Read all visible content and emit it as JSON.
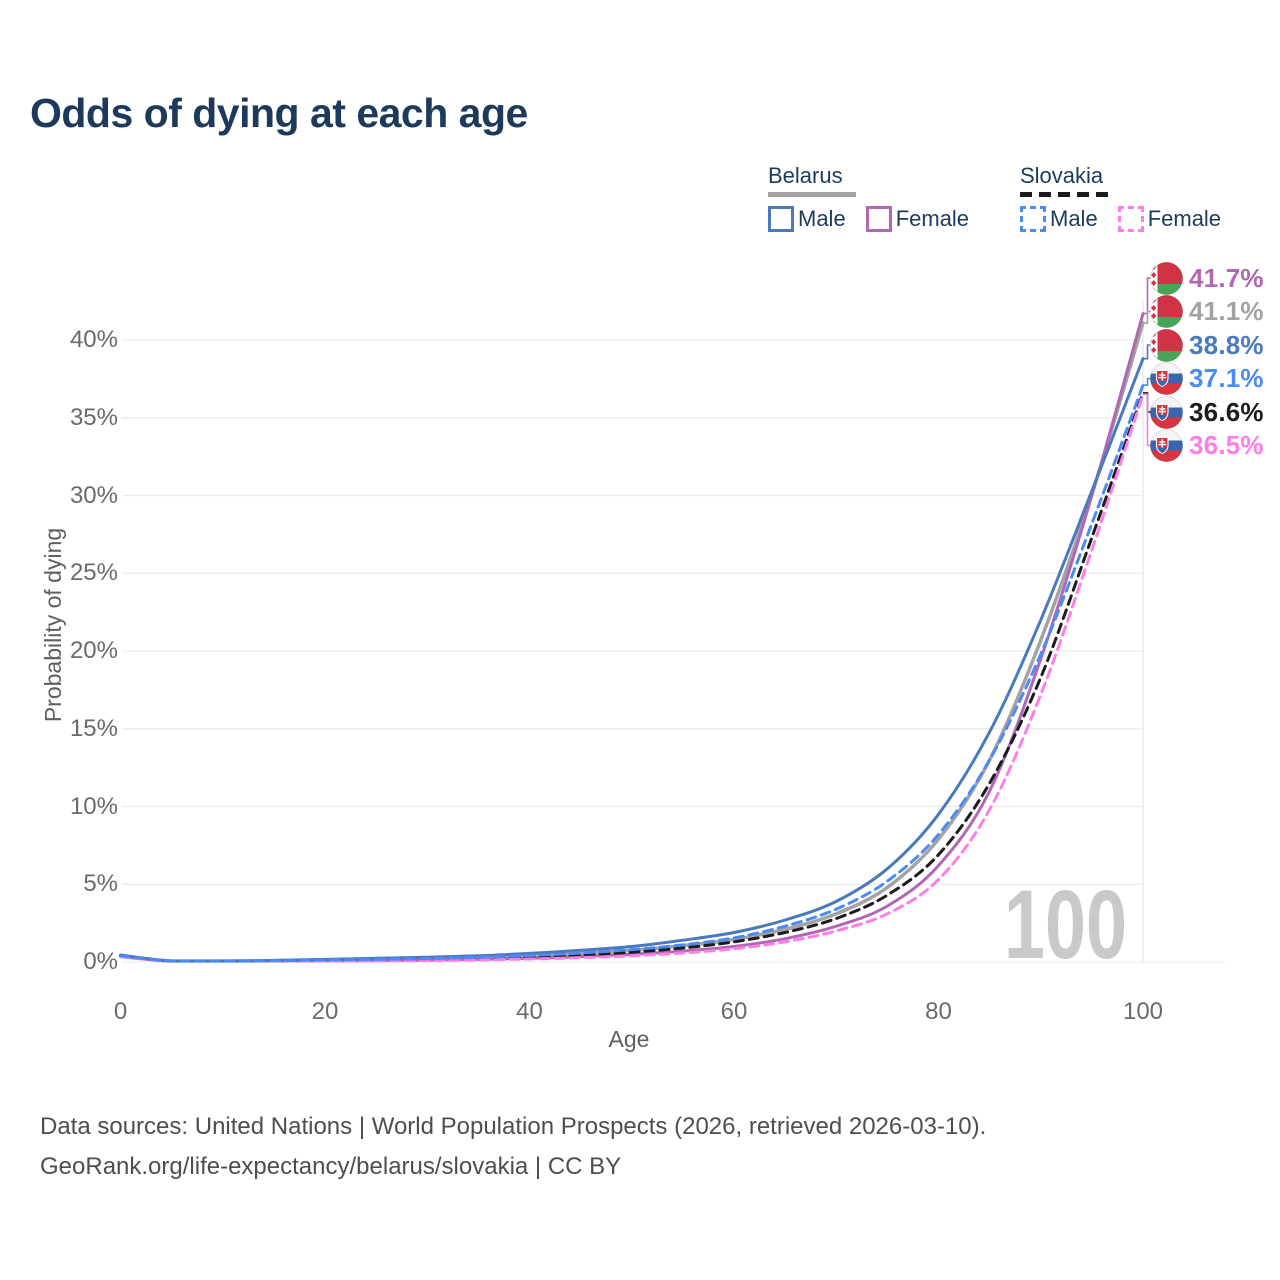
{
  "title": "Odds of dying at each age",
  "legend": {
    "groups": [
      {
        "label": "Belarus",
        "line_style": "solid",
        "underline_color": "#a3a3a3",
        "items": [
          {
            "label": "Male",
            "color": "#4a79bd"
          },
          {
            "label": "Female",
            "color": "#b168b4"
          }
        ]
      },
      {
        "label": "Slovakia",
        "line_style": "dashed",
        "underline_color": "#1c1c1c",
        "items": [
          {
            "label": "Male",
            "color": "#4b8bf5"
          },
          {
            "label": "Female",
            "color": "#ff7de8"
          }
        ]
      }
    ]
  },
  "chart_data": {
    "type": "line",
    "title": "Odds of dying at each age",
    "xlabel": "Age",
    "ylabel": "Probability of dying",
    "xlim": [
      0,
      100
    ],
    "ylim": [
      0,
      44
    ],
    "x_ticks": [
      0,
      20,
      40,
      60,
      80,
      100
    ],
    "y_ticks": [
      0,
      5,
      10,
      15,
      20,
      25,
      30,
      35,
      40
    ],
    "y_tick_labels": [
      "0%",
      "5%",
      "10%",
      "15%",
      "20%",
      "25%",
      "30%",
      "35%",
      "40%"
    ],
    "grid": "horizontal",
    "legend_position": "top-right",
    "x": [
      0,
      5,
      10,
      15,
      20,
      25,
      30,
      35,
      40,
      45,
      50,
      55,
      60,
      65,
      70,
      75,
      80,
      85,
      90,
      95,
      100
    ],
    "series": [
      {
        "name": "Belarus Both sexes",
        "country": "Belarus",
        "sex": "Both",
        "color": "#a3a3a3",
        "dash": "solid",
        "width": 3.5,
        "end_label": "41.1%",
        "values": [
          0.4,
          0.04,
          0.04,
          0.08,
          0.12,
          0.17,
          0.21,
          0.29,
          0.4,
          0.55,
          0.75,
          1.05,
          1.45,
          2.1,
          3.1,
          4.8,
          7.9,
          13.0,
          20.7,
          30.1,
          41.1
        ]
      },
      {
        "name": "Belarus Female",
        "country": "Belarus",
        "sex": "Female",
        "color": "#b168b4",
        "dash": "solid",
        "width": 3,
        "end_label": "41.7%",
        "values": [
          0.35,
          0.03,
          0.03,
          0.05,
          0.07,
          0.09,
          0.12,
          0.17,
          0.24,
          0.35,
          0.5,
          0.7,
          1.0,
          1.5,
          2.3,
          3.6,
          6.2,
          11.0,
          19.5,
          30.0,
          41.7
        ]
      },
      {
        "name": "Belarus Male",
        "country": "Belarus",
        "sex": "Male",
        "color": "#4a79bd",
        "dash": "solid",
        "width": 3,
        "end_label": "38.8%",
        "values": [
          0.45,
          0.05,
          0.05,
          0.1,
          0.17,
          0.24,
          0.3,
          0.4,
          0.55,
          0.75,
          1.0,
          1.4,
          1.9,
          2.7,
          3.9,
          6.0,
          9.5,
          14.8,
          22.0,
          30.3,
          38.8
        ]
      },
      {
        "name": "Slovakia Both sexes",
        "country": "Slovakia",
        "sex": "Both",
        "color": "#1c1c1c",
        "dash": "dashed",
        "width": 3,
        "end_label": "36.6%",
        "values": [
          0.4,
          0.035,
          0.035,
          0.06,
          0.1,
          0.13,
          0.17,
          0.23,
          0.32,
          0.45,
          0.63,
          0.9,
          1.3,
          1.9,
          2.8,
          4.3,
          6.9,
          11.5,
          18.3,
          27.3,
          36.6
        ]
      },
      {
        "name": "Slovakia Female",
        "country": "Slovakia",
        "sex": "Female",
        "color": "#ff7de8",
        "dash": "dashed",
        "width": 3,
        "end_label": "36.5%",
        "values": [
          0.35,
          0.03,
          0.03,
          0.04,
          0.05,
          0.07,
          0.09,
          0.13,
          0.19,
          0.28,
          0.4,
          0.58,
          0.85,
          1.3,
          2.0,
          3.1,
          5.3,
          9.8,
          17.2,
          26.5,
          36.5
        ]
      },
      {
        "name": "Slovakia Male",
        "country": "Slovakia",
        "sex": "Male",
        "color": "#4b8bf5",
        "dash": "dashed",
        "width": 3,
        "end_label": "37.1%",
        "values": [
          0.4,
          0.04,
          0.04,
          0.08,
          0.13,
          0.17,
          0.22,
          0.3,
          0.42,
          0.58,
          0.8,
          1.1,
          1.55,
          2.3,
          3.4,
          5.2,
          8.2,
          13.0,
          19.8,
          28.2,
          37.1
        ]
      }
    ],
    "callouts": [
      {
        "series": "Belarus Female",
        "value": "41.7%",
        "flag": "belarus"
      },
      {
        "series": "Belarus Both sexes",
        "value": "41.1%",
        "flag": "belarus"
      },
      {
        "series": "Belarus Male",
        "value": "38.8%",
        "flag": "belarus"
      },
      {
        "series": "Slovakia Male",
        "value": "37.1%",
        "flag": "slovakia"
      },
      {
        "series": "Slovakia Both sexes",
        "value": "36.6%",
        "flag": "slovakia"
      },
      {
        "series": "Slovakia Female",
        "value": "36.5%",
        "flag": "slovakia"
      }
    ]
  },
  "watermark": "100",
  "colors": {
    "title_text": "#1d3a5c",
    "axis_text": "#6a6a6a",
    "gridline": "#ececec",
    "watermark": "#c9c9c9",
    "footer_text": "#4e4e4e"
  },
  "footer": {
    "line1": "Data sources: United Nations | World Population Prospects (2026, retrieved 2026-03-10).",
    "line2": "GeoRank.org/life-expectancy/belarus/slovakia | CC BY"
  }
}
